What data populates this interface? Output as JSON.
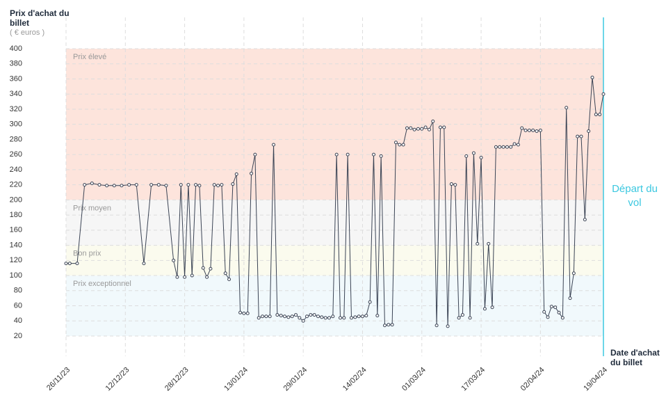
{
  "chart_data": {
    "type": "line",
    "y_label": "Prix d'achat du billet",
    "y_unit": "( € euros )",
    "x_label": "Date d'achat du billet",
    "annotation": "Départ du vol",
    "annotation_date": "19/04/24",
    "annotation_color": "#3cc8e0",
    "bands": [
      {
        "label": "Prix élevé",
        "from": 200,
        "to": 400,
        "color": "#fde4dc"
      },
      {
        "label": "Prix moyen",
        "from": 140,
        "to": 200,
        "color": "#f6f6f6"
      },
      {
        "label": "Bon prix",
        "from": 100,
        "to": 140,
        "color": "#fbfbee"
      },
      {
        "label": "Prix exceptionnel",
        "from": 20,
        "to": 100,
        "color": "#f1f9fc"
      }
    ],
    "x": [
      "26/11/23",
      "27/11/23",
      "29/11/23",
      "01/12/23",
      "03/12/23",
      "05/12/23",
      "07/12/23",
      "09/12/23",
      "11/12/23",
      "13/12/23",
      "15/12/23",
      "17/12/23",
      "19/12/23",
      "21/12/23",
      "23/12/23",
      "25/12/23",
      "26/12/23",
      "27/12/23",
      "28/12/23",
      "29/12/23",
      "30/12/23",
      "31/12/23",
      "01/01/24",
      "02/01/24",
      "03/01/24",
      "04/01/24",
      "05/01/24",
      "06/01/24",
      "07/01/24",
      "08/01/24",
      "09/01/24",
      "10/01/24",
      "11/01/24",
      "12/01/24",
      "13/01/24",
      "14/01/24",
      "15/01/24",
      "16/01/24",
      "17/01/24",
      "18/01/24",
      "19/01/24",
      "20/01/24",
      "21/01/24",
      "22/01/24",
      "23/01/24",
      "24/01/24",
      "25/01/24",
      "26/01/24",
      "27/01/24",
      "28/01/24",
      "29/01/24",
      "30/01/24",
      "31/01/24",
      "01/02/24",
      "02/02/24",
      "03/02/24",
      "04/02/24",
      "05/02/24",
      "06/02/24",
      "07/02/24",
      "08/02/24",
      "09/02/24",
      "10/02/24",
      "11/02/24",
      "12/02/24",
      "13/02/24",
      "14/02/24",
      "15/02/24",
      "16/02/24",
      "17/02/24",
      "18/02/24",
      "19/02/24",
      "20/02/24",
      "21/02/24",
      "22/02/24",
      "23/02/24",
      "24/02/24",
      "25/02/24",
      "26/02/24",
      "27/02/24",
      "28/02/24",
      "29/02/24",
      "01/03/24",
      "02/03/24",
      "03/03/24",
      "04/03/24",
      "05/03/24",
      "06/03/24",
      "07/03/24",
      "08/03/24",
      "09/03/24",
      "10/03/24",
      "11/03/24",
      "12/03/24",
      "13/03/24",
      "14/03/24",
      "15/03/24",
      "16/03/24",
      "17/03/24",
      "18/03/24",
      "19/03/24",
      "20/03/24",
      "21/03/24",
      "22/03/24",
      "23/03/24",
      "24/03/24",
      "25/03/24",
      "26/03/24",
      "27/03/24",
      "28/03/24",
      "29/03/24",
      "30/03/24",
      "31/03/24",
      "01/04/24",
      "02/04/24",
      "03/04/24",
      "04/04/24",
      "05/04/24",
      "06/04/24",
      "07/04/24",
      "08/04/24",
      "09/04/24",
      "10/04/24",
      "11/04/24",
      "12/04/24",
      "13/04/24",
      "14/04/24",
      "15/04/24",
      "16/04/24",
      "17/04/24",
      "18/04/24",
      "19/04/24"
    ],
    "series": [
      {
        "name": "Prix",
        "color": "#3a4354",
        "values": [
          116,
          116,
          116,
          220,
          222,
          220,
          219,
          219,
          219,
          220,
          220,
          116,
          220,
          220,
          219,
          120,
          98,
          220,
          98,
          220,
          100,
          220,
          219,
          110,
          98,
          109,
          220,
          219,
          220,
          103,
          95,
          221,
          234,
          51,
          50,
          50,
          235,
          260,
          44,
          46,
          46,
          46,
          273,
          48,
          47,
          46,
          45,
          46,
          48,
          44,
          40,
          46,
          48,
          48,
          46,
          45,
          44,
          44,
          46,
          260,
          44,
          44,
          260,
          44,
          45,
          46,
          46,
          47,
          65,
          260,
          47,
          258,
          34,
          35,
          35,
          276,
          273,
          273,
          295,
          295,
          293,
          294,
          294,
          296,
          293,
          304,
          34,
          296,
          296,
          33,
          221,
          220,
          44,
          48,
          258,
          44,
          262,
          142,
          256,
          56,
          142,
          58,
          270,
          270,
          270,
          270,
          270,
          274,
          273,
          295,
          292,
          292,
          292,
          291,
          292,
          52,
          45,
          59,
          58,
          51,
          44,
          322,
          70,
          103,
          284,
          284,
          174,
          291,
          362,
          313,
          313,
          340
        ]
      }
    ],
    "xlim": [
      "26/11/23",
      "19/04/24"
    ],
    "xticks": [
      "26/11/23",
      "12/12/23",
      "28/12/23",
      "13/01/24",
      "29/01/24",
      "14/02/24",
      "01/03/24",
      "17/03/24",
      "02/04/24",
      "19/04/24"
    ],
    "ylim": [
      20,
      400
    ],
    "yticks": [
      20,
      40,
      60,
      80,
      100,
      120,
      140,
      160,
      180,
      200,
      220,
      240,
      260,
      280,
      300,
      320,
      340,
      360,
      380,
      400
    ],
    "grid": true
  }
}
